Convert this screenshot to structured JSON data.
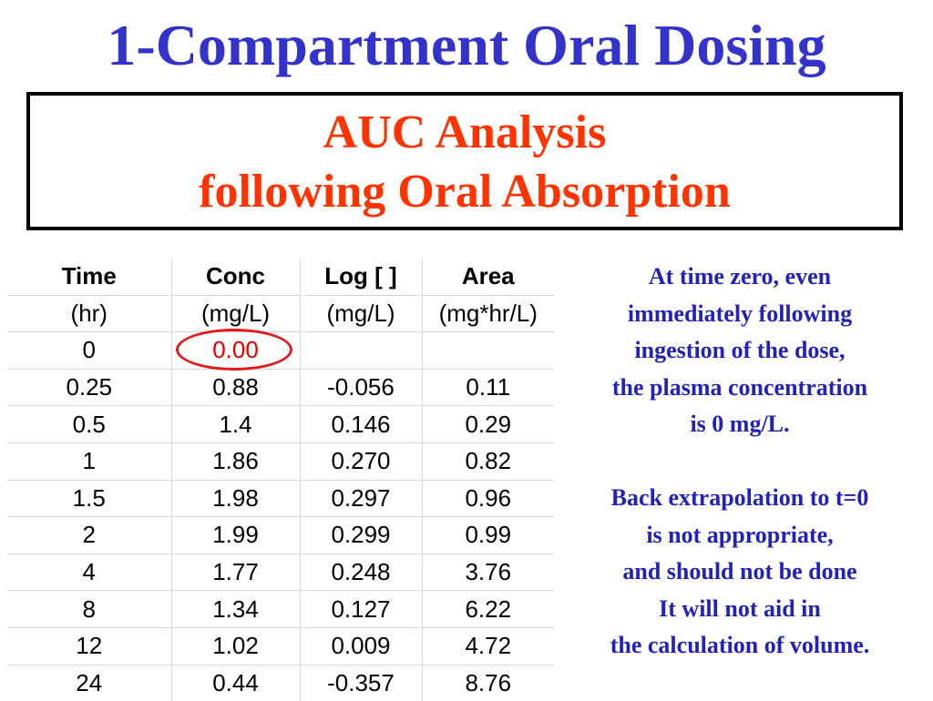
{
  "slide": {
    "title": "1-Compartment Oral Dosing",
    "subtitle_line1": "AUC Analysis",
    "subtitle_line2": "following Oral Absorption",
    "colors": {
      "title": "#3333cc",
      "subtitle": "#ff3300",
      "notes": "#2222bb",
      "highlight_circle": "#e41a1a"
    }
  },
  "table": {
    "headers": [
      [
        "Time",
        "(hr)"
      ],
      [
        "Conc",
        "(mg/L)"
      ],
      [
        "Log [ ]",
        "(mg/L)"
      ],
      [
        "Area",
        "(mg*hr/L)"
      ]
    ],
    "rows": [
      [
        "0",
        "0.00",
        "",
        ""
      ],
      [
        "0.25",
        "0.88",
        "-0.056",
        "0.11"
      ],
      [
        "0.5",
        "1.4",
        "0.146",
        "0.29"
      ],
      [
        "1",
        "1.86",
        "0.270",
        "0.82"
      ],
      [
        "1.5",
        "1.98",
        "0.297",
        "0.96"
      ],
      [
        "2",
        "1.99",
        "0.299",
        "0.99"
      ],
      [
        "4",
        "1.77",
        "0.248",
        "3.76"
      ],
      [
        "8",
        "1.34",
        "0.127",
        "6.22"
      ],
      [
        "12",
        "1.02",
        "0.009",
        "4.72"
      ],
      [
        "24",
        "0.44",
        "-0.357",
        "8.76"
      ]
    ],
    "highlighted_cell": "0.00"
  },
  "notes": {
    "paragraph1": [
      "At time zero, even",
      "immediately following",
      "ingestion of the dose,",
      "the plasma concentration",
      "is 0 mg/L."
    ],
    "paragraph2": [
      "Back extrapolation to t=0",
      "is not appropriate,",
      "and should not be done",
      "It will not aid in",
      "the calculation of volume."
    ]
  }
}
